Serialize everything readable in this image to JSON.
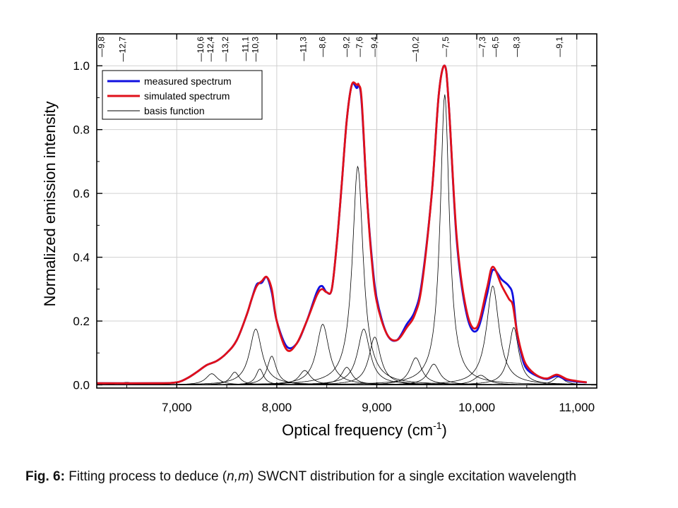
{
  "chart_data": {
    "type": "line",
    "xlabel": "Optical frequency (cm",
    "xlabel_sup": "-1",
    "xlabel_suffix": ")",
    "ylabel": "Normalized emission intensity",
    "xlim": [
      6200,
      11200
    ],
    "ylim": [
      -0.01,
      1.1
    ],
    "x_ticks": [
      7000,
      8000,
      9000,
      10000,
      11000
    ],
    "x_tick_labels": [
      "7,000",
      "8,000",
      "9,000",
      "10,000",
      "11,000"
    ],
    "y_ticks": [
      0.0,
      0.2,
      0.4,
      0.6,
      0.8,
      1.0
    ],
    "y_tick_labels": [
      "0.0",
      "0.2",
      "0.4",
      "0.6",
      "0.8",
      "1.0"
    ],
    "grid": true,
    "legend_position": "top-left",
    "top_axis_labels": [
      {
        "x": 6240,
        "label": "—9,8"
      },
      {
        "x": 6450,
        "label": "—12,7"
      },
      {
        "x": 7230,
        "label": "—10,6"
      },
      {
        "x": 7330,
        "label": "—12,4"
      },
      {
        "x": 7480,
        "label": "—13,2"
      },
      {
        "x": 7680,
        "label": "—11,1"
      },
      {
        "x": 7780,
        "label": "—10,3"
      },
      {
        "x": 8260,
        "label": "—11,3"
      },
      {
        "x": 8450,
        "label": "—8,6"
      },
      {
        "x": 8690,
        "label": "—9,2"
      },
      {
        "x": 8820,
        "label": "—7,6"
      },
      {
        "x": 8970,
        "label": "—9,4"
      },
      {
        "x": 9380,
        "label": "—10,2"
      },
      {
        "x": 9680,
        "label": "—7,5"
      },
      {
        "x": 10050,
        "label": "—7,3"
      },
      {
        "x": 10180,
        "label": "—6,5"
      },
      {
        "x": 10390,
        "label": "—8,3"
      },
      {
        "x": 10820,
        "label": "—9,1"
      }
    ],
    "series": [
      {
        "name": "measured spectrum",
        "color": "#1010e0",
        "x": [
          6200,
          6800,
          7000,
          7100,
          7200,
          7300,
          7400,
          7500,
          7600,
          7700,
          7750,
          7800,
          7850,
          7900,
          7950,
          8000,
          8100,
          8200,
          8300,
          8400,
          8450,
          8500,
          8550,
          8600,
          8650,
          8700,
          8750,
          8800,
          8820,
          8850,
          8900,
          8950,
          9000,
          9100,
          9200,
          9300,
          9380,
          9450,
          9550,
          9620,
          9680,
          9720,
          9800,
          9900,
          10000,
          10100,
          10160,
          10250,
          10320,
          10360,
          10400,
          10450,
          10500,
          10600,
          10700,
          10800,
          10900,
          11000,
          11100
        ],
        "values": [
          0.005,
          0.005,
          0.008,
          0.02,
          0.04,
          0.062,
          0.075,
          0.1,
          0.14,
          0.22,
          0.27,
          0.315,
          0.32,
          0.338,
          0.29,
          0.2,
          0.12,
          0.13,
          0.2,
          0.29,
          0.31,
          0.29,
          0.3,
          0.44,
          0.63,
          0.83,
          0.94,
          0.93,
          0.94,
          0.88,
          0.6,
          0.4,
          0.27,
          0.16,
          0.14,
          0.19,
          0.23,
          0.32,
          0.6,
          0.91,
          1.0,
          0.88,
          0.45,
          0.22,
          0.17,
          0.28,
          0.36,
          0.33,
          0.31,
          0.28,
          0.17,
          0.09,
          0.05,
          0.028,
          0.018,
          0.028,
          0.015,
          0.01,
          0.008
        ]
      },
      {
        "name": "simulated spectrum",
        "color": "#e0101a",
        "x": [
          6200,
          6800,
          7000,
          7100,
          7200,
          7300,
          7400,
          7500,
          7600,
          7700,
          7750,
          7800,
          7850,
          7900,
          7950,
          8000,
          8100,
          8200,
          8300,
          8400,
          8450,
          8500,
          8550,
          8600,
          8650,
          8700,
          8750,
          8800,
          8820,
          8850,
          8900,
          8950,
          9000,
          9100,
          9200,
          9300,
          9380,
          9450,
          9550,
          9620,
          9680,
          9720,
          9800,
          9900,
          10000,
          10100,
          10160,
          10250,
          10320,
          10360,
          10400,
          10450,
          10500,
          10600,
          10700,
          10800,
          10900,
          11000,
          11100
        ],
        "values": [
          0.005,
          0.005,
          0.008,
          0.02,
          0.04,
          0.062,
          0.075,
          0.1,
          0.14,
          0.22,
          0.27,
          0.31,
          0.325,
          0.338,
          0.3,
          0.2,
          0.11,
          0.13,
          0.2,
          0.28,
          0.3,
          0.29,
          0.3,
          0.44,
          0.63,
          0.83,
          0.94,
          0.94,
          0.94,
          0.89,
          0.6,
          0.39,
          0.26,
          0.16,
          0.14,
          0.18,
          0.22,
          0.31,
          0.6,
          0.91,
          1.0,
          0.88,
          0.46,
          0.23,
          0.18,
          0.3,
          0.37,
          0.31,
          0.27,
          0.25,
          0.17,
          0.1,
          0.06,
          0.03,
          0.02,
          0.032,
          0.018,
          0.012,
          0.008
        ]
      },
      {
        "name": "basis function",
        "color": "#000000",
        "basis_peaks": [
          {
            "center": 7350,
            "height": 0.035,
            "width": 140
          },
          {
            "center": 7580,
            "height": 0.04,
            "width": 110
          },
          {
            "center": 7790,
            "height": 0.175,
            "width": 150
          },
          {
            "center": 7950,
            "height": 0.09,
            "width": 110
          },
          {
            "center": 7830,
            "height": 0.05,
            "width": 90
          },
          {
            "center": 8280,
            "height": 0.045,
            "width": 140
          },
          {
            "center": 8460,
            "height": 0.19,
            "width": 150
          },
          {
            "center": 8700,
            "height": 0.055,
            "width": 130
          },
          {
            "center": 8810,
            "height": 0.685,
            "width": 130
          },
          {
            "center": 8870,
            "height": 0.175,
            "width": 150
          },
          {
            "center": 8980,
            "height": 0.15,
            "width": 140
          },
          {
            "center": 9390,
            "height": 0.085,
            "width": 140
          },
          {
            "center": 9570,
            "height": 0.065,
            "width": 140
          },
          {
            "center": 9680,
            "height": 0.91,
            "width": 110
          },
          {
            "center": 10040,
            "height": 0.03,
            "width": 160
          },
          {
            "center": 10160,
            "height": 0.31,
            "width": 150
          },
          {
            "center": 10370,
            "height": 0.18,
            "width": 120
          },
          {
            "center": 10820,
            "height": 0.025,
            "width": 130
          },
          {
            "center": 6500,
            "height": 0.008,
            "width": 150
          }
        ]
      }
    ]
  },
  "caption": {
    "bold": "Fig. 6:",
    "pre": " Fitting process to deduce (",
    "italic": "n,m",
    "post": ") SWCNT distribution for a single excitation wavelength"
  }
}
